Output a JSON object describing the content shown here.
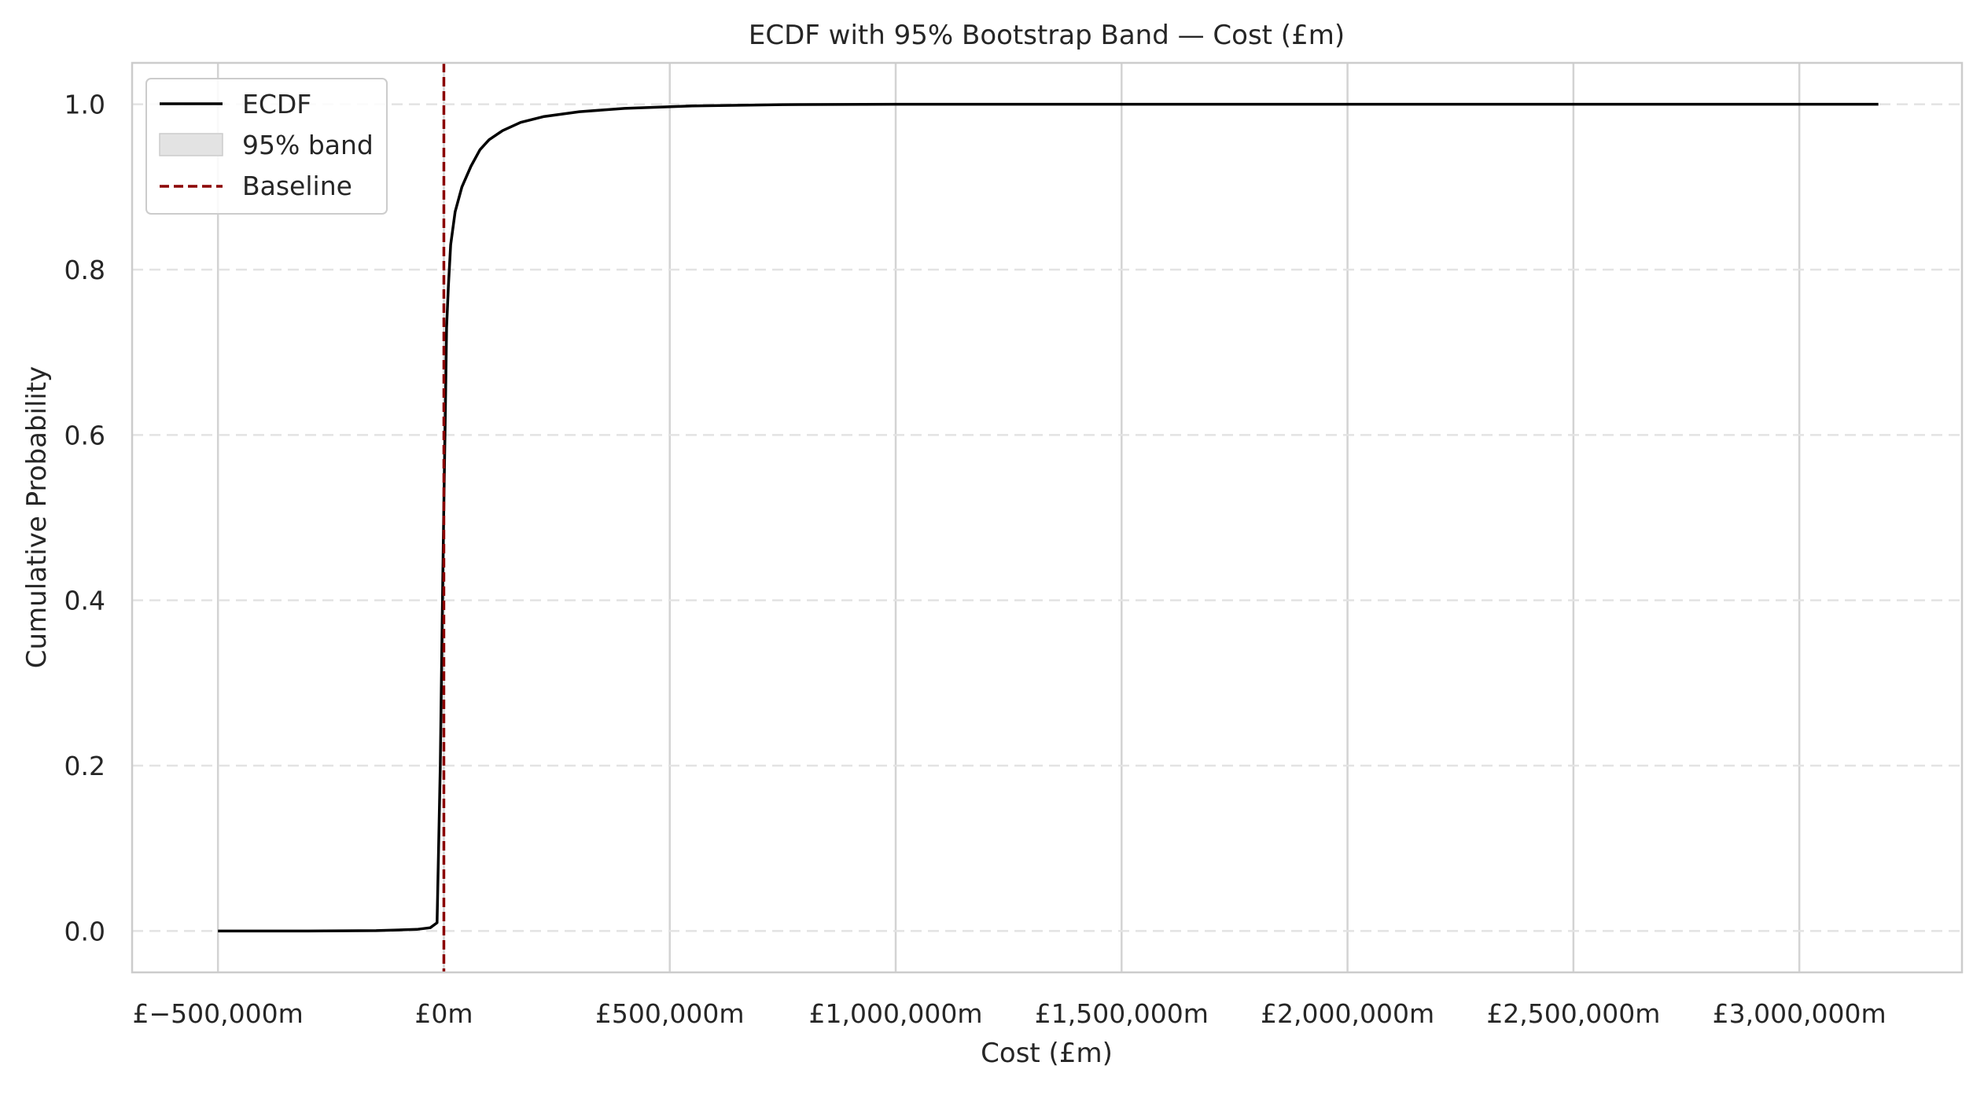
{
  "chart_data": {
    "type": "line",
    "title": "ECDF with 95% Bootstrap Band — Cost (£m)",
    "xlabel": "Cost (£m)",
    "ylabel": "Cumulative Probability",
    "xlim": [
      -690000,
      3360000
    ],
    "ylim": [
      -0.05,
      1.05
    ],
    "x_ticks": [
      {
        "value": -500000,
        "label": "£−500,000m"
      },
      {
        "value": 0,
        "label": "£0m"
      },
      {
        "value": 500000,
        "label": "£500,000m"
      },
      {
        "value": 1000000,
        "label": "£1,000,000m"
      },
      {
        "value": 1500000,
        "label": "£1,500,000m"
      },
      {
        "value": 2000000,
        "label": "£2,000,000m"
      },
      {
        "value": 2500000,
        "label": "£2,500,000m"
      },
      {
        "value": 3000000,
        "label": "£3,000,000m"
      }
    ],
    "y_ticks": [
      {
        "value": 0.0,
        "label": "0.0"
      },
      {
        "value": 0.2,
        "label": "0.2"
      },
      {
        "value": 0.4,
        "label": "0.4"
      },
      {
        "value": 0.6,
        "label": "0.6"
      },
      {
        "value": 0.8,
        "label": "0.8"
      },
      {
        "value": 1.0,
        "label": "1.0"
      }
    ],
    "grid": {
      "x": "solid",
      "y": "dashed"
    },
    "legend": {
      "placement": "top-left",
      "entries": [
        {
          "label": "ECDF",
          "style": "line",
          "color": "#000000"
        },
        {
          "label": "95% band",
          "style": "patch",
          "color": "#e3e3e3"
        },
        {
          "label": "Baseline",
          "style": "dashed",
          "color": "#8b0000"
        }
      ]
    },
    "series": [
      {
        "name": "ECDF",
        "color": "#000000",
        "points": [
          [
            -500000,
            0.0
          ],
          [
            -300000,
            0.0
          ],
          [
            -150000,
            0.0005
          ],
          [
            -60000,
            0.002
          ],
          [
            -30000,
            0.004
          ],
          [
            -15000,
            0.01
          ],
          [
            -8000,
            0.2
          ],
          [
            -3000,
            0.4
          ],
          [
            0,
            0.52
          ],
          [
            3000,
            0.62
          ],
          [
            6000,
            0.73
          ],
          [
            10000,
            0.78
          ],
          [
            15000,
            0.83
          ],
          [
            25000,
            0.87
          ],
          [
            40000,
            0.9
          ],
          [
            60000,
            0.925
          ],
          [
            80000,
            0.945
          ],
          [
            100000,
            0.957
          ],
          [
            130000,
            0.968
          ],
          [
            170000,
            0.978
          ],
          [
            220000,
            0.985
          ],
          [
            300000,
            0.991
          ],
          [
            400000,
            0.995
          ],
          [
            550000,
            0.998
          ],
          [
            750000,
            0.9995
          ],
          [
            1000000,
            1.0
          ],
          [
            3175000,
            1.0
          ]
        ]
      }
    ],
    "band": {
      "name": "95% band",
      "color": "#e3e3e3",
      "visible_width": "negligible"
    },
    "baseline": {
      "name": "Baseline",
      "x": 0,
      "color": "#8b0000"
    }
  }
}
